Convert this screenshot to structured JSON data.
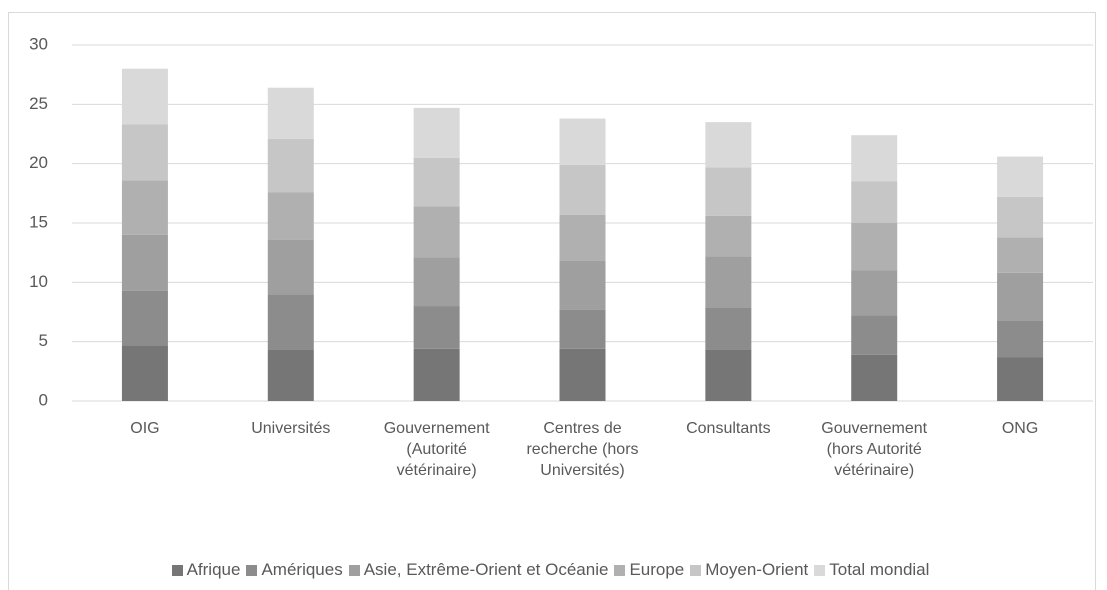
{
  "chart_data": {
    "type": "stacked_bar",
    "categories": [
      "OIG",
      "Universités",
      "Gouvernement (Autorité vétérinaire)",
      "Centres de recherche (hors Universités)",
      "Consultants",
      "Gouvernement (hors Autorité vétérinaire)",
      "ONG"
    ],
    "series": [
      {
        "name": "Afrique",
        "color": "#767676",
        "values": [
          4.7,
          4.3,
          4.4,
          4.4,
          4.3,
          3.9,
          3.7
        ]
      },
      {
        "name": "Amériques",
        "color": "#8c8c8c",
        "values": [
          4.6,
          4.7,
          3.6,
          3.3,
          3.6,
          3.3,
          3.1
        ]
      },
      {
        "name": "Asie, Extrême-Orient et Océanie",
        "color": "#9f9f9f",
        "values": [
          4.7,
          4.6,
          4.1,
          4.1,
          4.3,
          3.8,
          4.0
        ]
      },
      {
        "name": "Europe",
        "color": "#b0b0b0",
        "values": [
          4.6,
          4.0,
          4.3,
          3.9,
          3.4,
          4.0,
          3.0
        ]
      },
      {
        "name": "Moyen-Orient",
        "color": "#c6c6c6",
        "values": [
          4.7,
          4.5,
          4.1,
          4.2,
          4.1,
          3.5,
          3.4
        ]
      },
      {
        "name": "Total mondial",
        "color": "#d9d9d9",
        "values": [
          4.7,
          4.3,
          4.2,
          3.9,
          3.8,
          3.9,
          3.4
        ]
      }
    ],
    "ylim": [
      0,
      30
    ],
    "yticks": [
      0,
      5,
      10,
      15,
      20,
      25,
      30
    ],
    "grid": true,
    "legend": "bottom"
  }
}
